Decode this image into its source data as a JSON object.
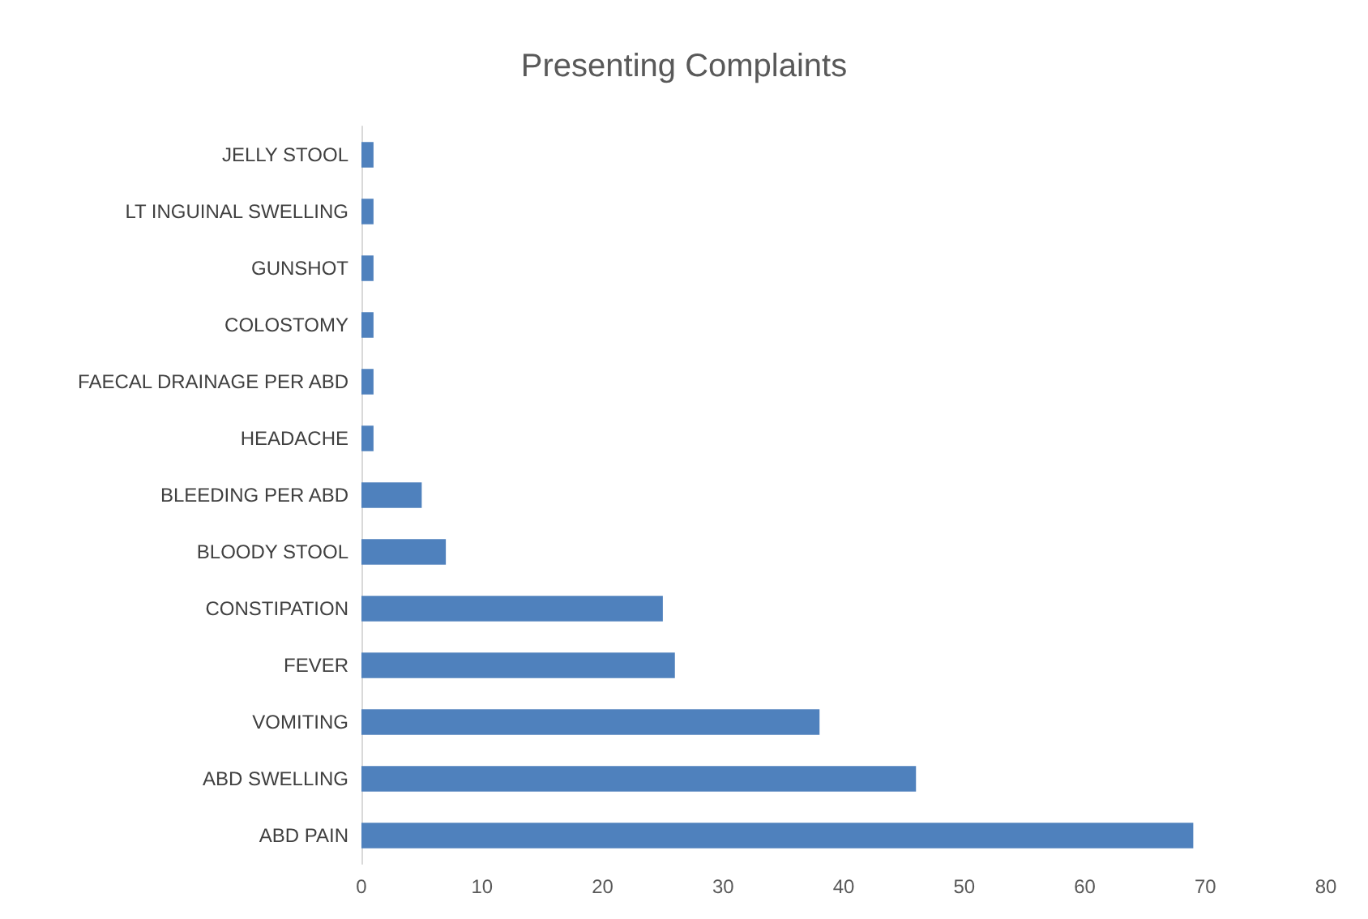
{
  "chart_data": {
    "type": "bar",
    "orientation": "horizontal",
    "title": "Presenting Complaints",
    "categories": [
      "JELLY STOOL",
      "LT INGUINAL SWELLING",
      "GUNSHOT",
      "COLOSTOMY",
      "FAECAL DRAINAGE PER ABD",
      "HEADACHE",
      "BLEEDING PER ABD",
      "BLOODY STOOL",
      "CONSTIPATION",
      "FEVER",
      "VOMITING",
      "ABD SWELLING",
      "ABD PAIN"
    ],
    "values": [
      1,
      1,
      1,
      1,
      1,
      1,
      5,
      7,
      25,
      26,
      38,
      46,
      69
    ],
    "color": "#4f81bd",
    "xlim": [
      0,
      80
    ],
    "xticks": [
      0,
      10,
      20,
      30,
      40,
      50,
      60,
      70,
      80
    ],
    "grid": false
  }
}
